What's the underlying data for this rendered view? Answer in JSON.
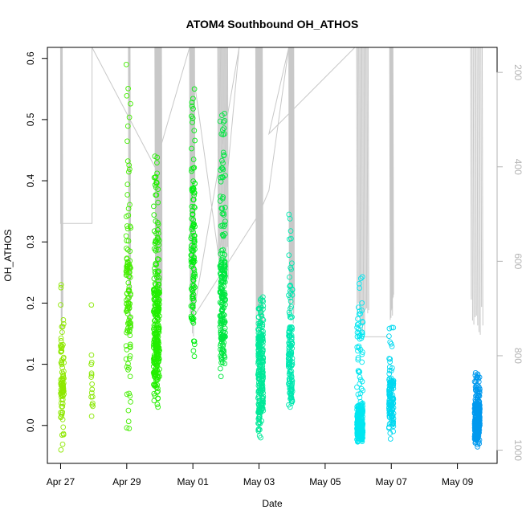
{
  "chart_data": {
    "type": "scatter",
    "title": "ATOM4 Southbound OH_ATHOS",
    "xlabel": "Date",
    "ylabel": "OH_ATHOS",
    "x_ticks": [
      "Apr 27",
      "Apr 29",
      "May 01",
      "May 03",
      "May 05",
      "May 07",
      "May 09"
    ],
    "x_tick_days": [
      0,
      2,
      4,
      6,
      8,
      10,
      12
    ],
    "xlim_days": [
      -0.4,
      13.2
    ],
    "ylim": [
      -0.062,
      0.618
    ],
    "y_ticks": [
      0.0,
      0.1,
      0.2,
      0.3,
      0.4,
      0.5,
      0.6
    ],
    "y2_ticks": [
      200,
      400,
      600,
      800,
      1000
    ],
    "y2lim_inverted": [
      1028,
      147
    ],
    "grid": false,
    "legend": "none",
    "marker": "open-circle",
    "secondary_line_color": "#c8c8c8",
    "point_clusters": [
      {
        "day": 0.05,
        "color": "#8ee800",
        "n": 90,
        "spread": 0.05,
        "min": -0.04,
        "q1": 0.045,
        "median": 0.07,
        "q3": 0.11,
        "max": 0.23
      },
      {
        "day": 0.95,
        "color": "#88e800",
        "n": 16,
        "spread": 0.03,
        "min": 0.015,
        "q1": 0.05,
        "median": 0.075,
        "q3": 0.09,
        "max": 0.197
      },
      {
        "day": 2.05,
        "color": "#44ee00",
        "n": 120,
        "spread": 0.07,
        "min": -0.005,
        "q1": 0.16,
        "median": 0.2,
        "q3": 0.26,
        "max": 0.59
      },
      {
        "day": 2.9,
        "color": "#22ee00",
        "n": 300,
        "spread": 0.09,
        "min": 0.03,
        "q1": 0.11,
        "median": 0.16,
        "q3": 0.22,
        "max": 0.44
      },
      {
        "day": 4.0,
        "color": "#00ee10",
        "n": 120,
        "spread": 0.06,
        "min": 0.113,
        "q1": 0.23,
        "median": 0.3,
        "q3": 0.38,
        "max": 0.55
      },
      {
        "day": 4.9,
        "color": "#00e640",
        "n": 220,
        "spread": 0.08,
        "min": 0.08,
        "q1": 0.16,
        "median": 0.21,
        "q3": 0.26,
        "max": 0.51
      },
      {
        "day": 6.05,
        "color": "#00e898",
        "n": 260,
        "spread": 0.08,
        "min": -0.02,
        "q1": 0.05,
        "median": 0.1,
        "q3": 0.14,
        "max": 0.21
      },
      {
        "day": 6.95,
        "color": "#00e8b0",
        "n": 150,
        "spread": 0.06,
        "min": 0.03,
        "q1": 0.09,
        "median": 0.13,
        "q3": 0.16,
        "max": 0.345
      },
      {
        "day": 9.05,
        "color": "#00e6f0",
        "n": 300,
        "spread": 0.09,
        "min": -0.027,
        "q1": -0.01,
        "median": 0.005,
        "q3": 0.03,
        "max": 0.243
      },
      {
        "day": 10.0,
        "color": "#00d8f0",
        "n": 130,
        "spread": 0.07,
        "min": -0.022,
        "q1": 0.02,
        "median": 0.045,
        "q3": 0.07,
        "max": 0.16
      },
      {
        "day": 12.6,
        "color": "#0099ee",
        "n": 280,
        "spread": 0.08,
        "min": -0.035,
        "q1": -0.005,
        "median": 0.01,
        "q3": 0.03,
        "max": 0.086
      }
    ]
  }
}
